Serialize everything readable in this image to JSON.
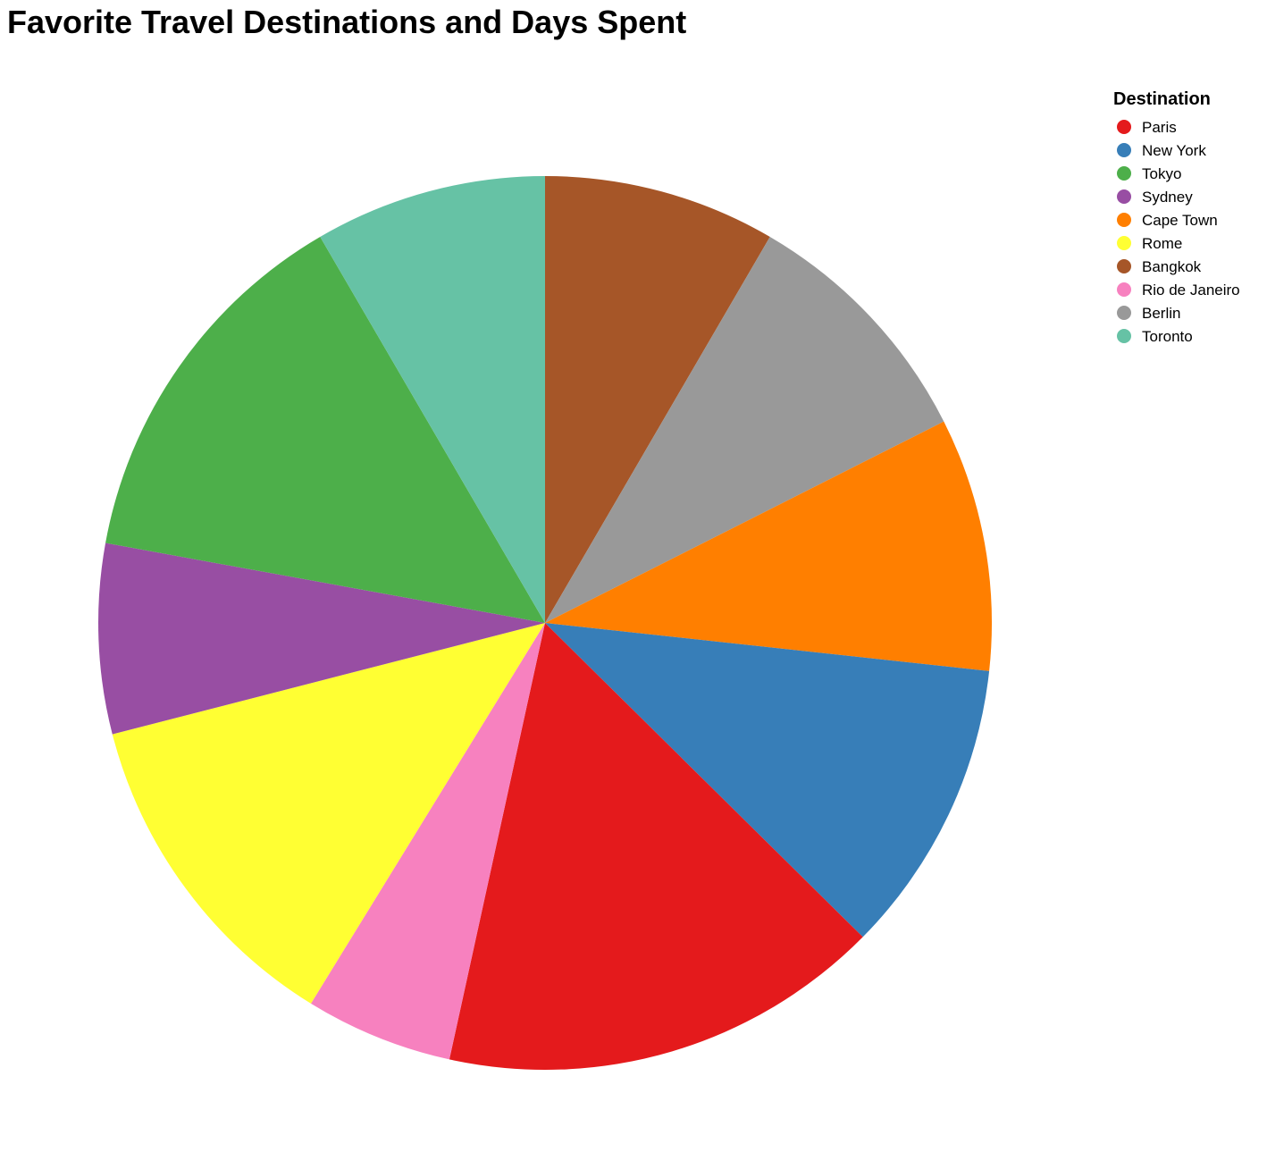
{
  "chart_data": {
    "type": "pie",
    "title": "Favorite Travel Destinations and Days Spent",
    "legend": {
      "title": "Destination",
      "placement": "top-right"
    },
    "series": [
      {
        "name": "Paris",
        "value": 21,
        "color": "#e41a1c"
      },
      {
        "name": "New York",
        "value": 14,
        "color": "#377eb8"
      },
      {
        "name": "Tokyo",
        "value": 18,
        "color": "#4daf4a"
      },
      {
        "name": "Sydney",
        "value": 9,
        "color": "#984ea3"
      },
      {
        "name": "Cape Town",
        "value": 12,
        "color": "#ff7f00"
      },
      {
        "name": "Rome",
        "value": 16,
        "color": "#ffff33"
      },
      {
        "name": "Bangkok",
        "value": 11,
        "color": "#a65628"
      },
      {
        "name": "Rio de Janeiro",
        "value": 7,
        "color": "#f781bf"
      },
      {
        "name": "Berlin",
        "value": 12,
        "color": "#999999"
      },
      {
        "name": "Toronto",
        "value": 11,
        "color": "#66c2a5"
      }
    ],
    "slice_order_clockwise_from_top": [
      "Bangkok",
      "Berlin",
      "Cape Town",
      "New York",
      "Paris",
      "Rio de Janeiro",
      "Rome",
      "Sydney",
      "Tokyo",
      "Toronto"
    ]
  }
}
